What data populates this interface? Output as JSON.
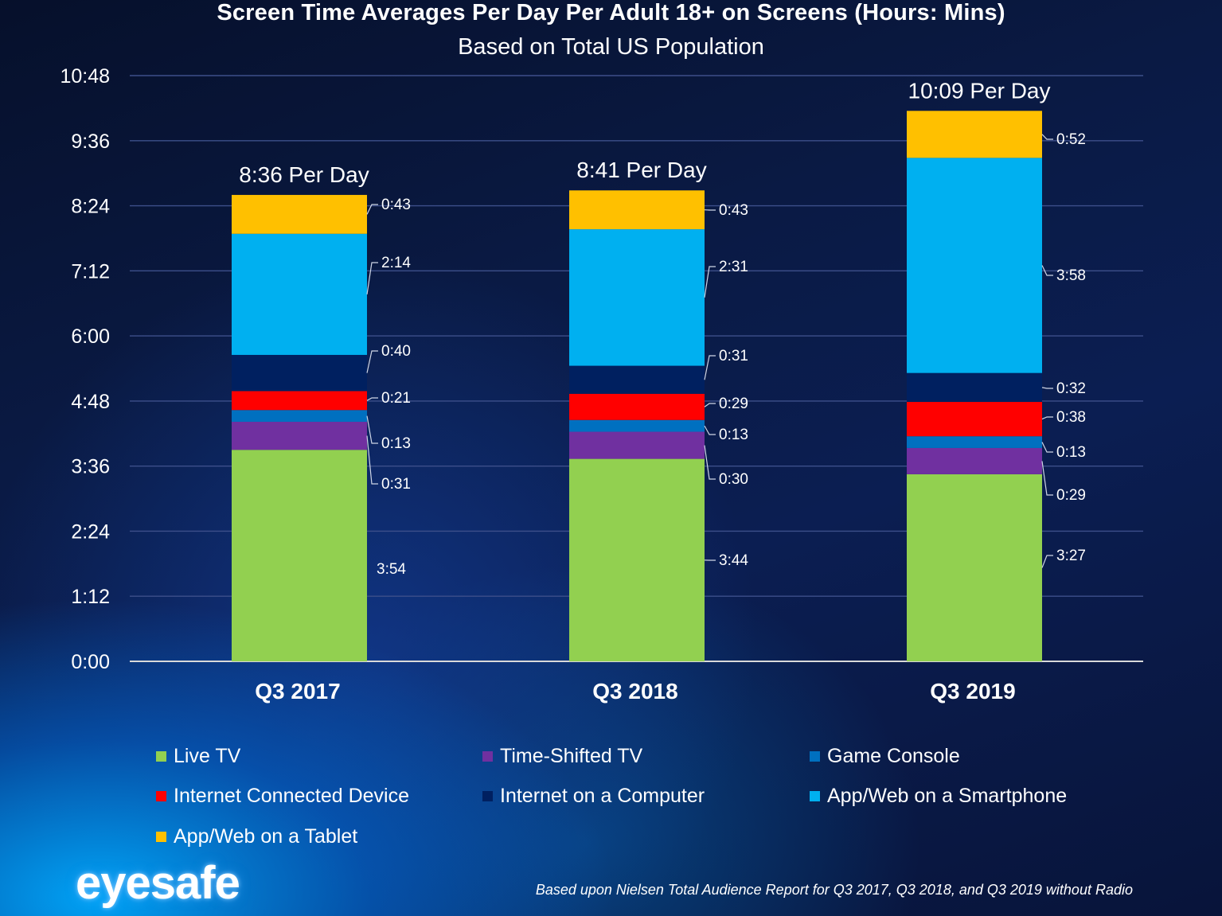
{
  "chart_data": {
    "type": "bar",
    "stacked": true,
    "title": "Screen Time Averages Per Day Per Adult 18+ on Screens (Hours: Mins)",
    "subtitle": "Based on Total US Population",
    "categories": [
      "Q3 2017",
      "Q3 2018",
      "Q3 2019"
    ],
    "ylim": [
      0,
      648
    ],
    "y_ticks": [
      {
        "value": 0,
        "label": "0:00"
      },
      {
        "value": 72,
        "label": "1:12"
      },
      {
        "value": 144,
        "label": "2:24"
      },
      {
        "value": 216,
        "label": "3:36"
      },
      {
        "value": 288,
        "label": "4:48"
      },
      {
        "value": 360,
        "label": "6:00"
      },
      {
        "value": 432,
        "label": "7:12"
      },
      {
        "value": 504,
        "label": "8:24"
      },
      {
        "value": 576,
        "label": "9:36"
      },
      {
        "value": 648,
        "label": "10:48"
      }
    ],
    "grid": true,
    "totals": [
      "8:36 Per Day",
      "8:41 Per Day",
      "10:09 Per Day"
    ],
    "series": [
      {
        "name": "Live TV",
        "color": "#92d050",
        "values": [
          234,
          224,
          207
        ],
        "labels": [
          "3:54",
          "3:44",
          "3:27"
        ]
      },
      {
        "name": "Time-Shifted TV",
        "color": "#7030a0",
        "values": [
          31,
          30,
          29
        ],
        "labels": [
          "0:31",
          "0:30",
          "0:29"
        ]
      },
      {
        "name": "Game Console",
        "color": "#0070c0",
        "values": [
          13,
          13,
          13
        ],
        "labels": [
          "0:13",
          "0:13",
          "0:13"
        ]
      },
      {
        "name": "Internet Connected Device",
        "color": "#ff0000",
        "values": [
          21,
          29,
          38
        ],
        "labels": [
          "0:21",
          "0:29",
          "0:38"
        ]
      },
      {
        "name": "Internet on a Computer",
        "color": "#002060",
        "values": [
          40,
          31,
          32
        ],
        "labels": [
          "0:40",
          "0:31",
          "0:32"
        ]
      },
      {
        "name": "App/Web on a Smartphone",
        "color": "#00b0f0",
        "values": [
          134,
          151,
          238
        ],
        "labels": [
          "2:14",
          "2:31",
          "3:58"
        ]
      },
      {
        "name": "App/Web on a Tablet",
        "color": "#ffc000",
        "values": [
          43,
          43,
          52
        ],
        "labels": [
          "0:43",
          "0:43",
          "0:52"
        ]
      }
    ],
    "legend_position": "bottom"
  },
  "footnote": "Based upon Nielsen Total Audience Report for Q3 2017, Q3 2018, and Q3 2019 without Radio",
  "logo_text": "eyesafe"
}
